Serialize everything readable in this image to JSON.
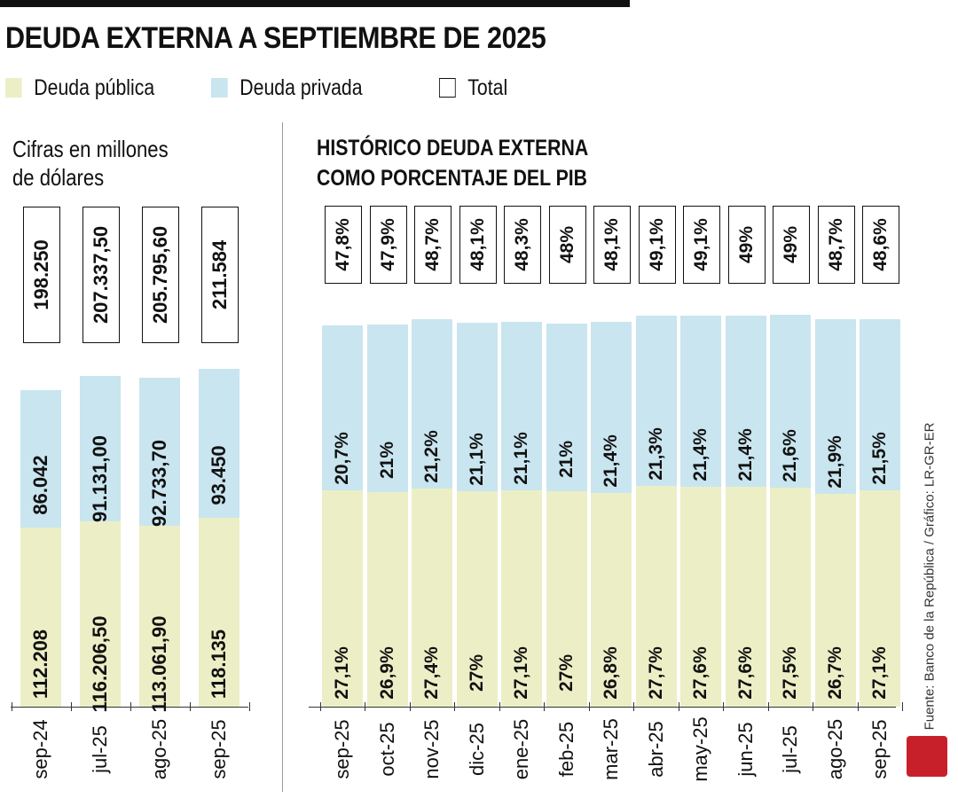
{
  "title": "DEUDA EXTERNA A SEPTIEMBRE DE 2025",
  "legend": [
    {
      "label": "Deuda pública",
      "color": "#ecefc6"
    },
    {
      "label": "Deuda privada",
      "color": "#c9e5ef"
    },
    {
      "label": "Total",
      "color": "#ffffff"
    }
  ],
  "source": "Fuente: Banco de la República / Gráfico: LR-GR-ER",
  "logo": "LR",
  "chart_data": [
    {
      "type": "bar",
      "stacked": true,
      "subtitle": [
        "Cifras en millones",
        "de dólares"
      ],
      "categories": [
        "sep-24",
        "jul-25",
        "ago-25",
        "sep-25"
      ],
      "series": [
        {
          "name": "Deuda pública",
          "values": [
            112208,
            116206.5,
            113061.9,
            118135
          ],
          "labels": [
            "112.208",
            "116.206,50",
            "113.061,90",
            "118.135"
          ]
        },
        {
          "name": "Deuda privada",
          "values": [
            86042,
            91131,
            92733.7,
            93450
          ],
          "labels": [
            "86.042",
            "91.131,00",
            "92.733,70",
            "93.450"
          ]
        }
      ],
      "totals": {
        "name": "Total",
        "values": [
          198250,
          207337.5,
          205795.6,
          211584
        ],
        "labels": [
          "198.250",
          "207.337,50",
          "205.795,60",
          "211.584"
        ]
      }
    },
    {
      "type": "bar",
      "stacked": true,
      "title": [
        "HISTÓRICO DEUDA EXTERNA",
        "COMO PORCENTAJE DEL PIB"
      ],
      "categories": [
        "sep-25",
        "oct-25",
        "nov-25",
        "dic-25",
        "ene-25",
        "feb-25",
        "mar-25",
        "abr-25",
        "may-25",
        "jun-25",
        "jul-25",
        "ago-25",
        "sep-25"
      ],
      "series": [
        {
          "name": "Deuda pública",
          "values": [
            27.1,
            26.9,
            27.4,
            27,
            27.1,
            27,
            26.8,
            27.7,
            27.6,
            27.6,
            27.5,
            26.7,
            27.1
          ],
          "labels": [
            "27,1%",
            "26,9%",
            "27,4%",
            "27%",
            "27,1%",
            "27%",
            "26,8%",
            "27,7%",
            "27,6%",
            "27,6%",
            "27,5%",
            "26,7%",
            "27,1%"
          ]
        },
        {
          "name": "Deuda privada",
          "values": [
            20.7,
            21,
            21.2,
            21.1,
            21.1,
            21,
            21.4,
            21.3,
            21.4,
            21.4,
            21.6,
            21.9,
            21.5
          ],
          "labels": [
            "20,7%",
            "21%",
            "21,2%",
            "21,1%",
            "21,1%",
            "21%",
            "21,4%",
            "21,3%",
            "21,4%",
            "21,4%",
            "21,6%",
            "21,9%",
            "21,5%"
          ]
        }
      ],
      "totals": {
        "name": "Total",
        "values": [
          47.8,
          47.9,
          48.7,
          48.1,
          48.3,
          48,
          48.1,
          49.1,
          49.1,
          49,
          49,
          48.7,
          48.6
        ],
        "labels": [
          "47,8%",
          "47,9%",
          "48,7%",
          "48,1%",
          "48,3%",
          "48%",
          "48,1%",
          "49,1%",
          "49,1%",
          "49%",
          "49%",
          "48,7%",
          "48,6%"
        ]
      }
    }
  ]
}
